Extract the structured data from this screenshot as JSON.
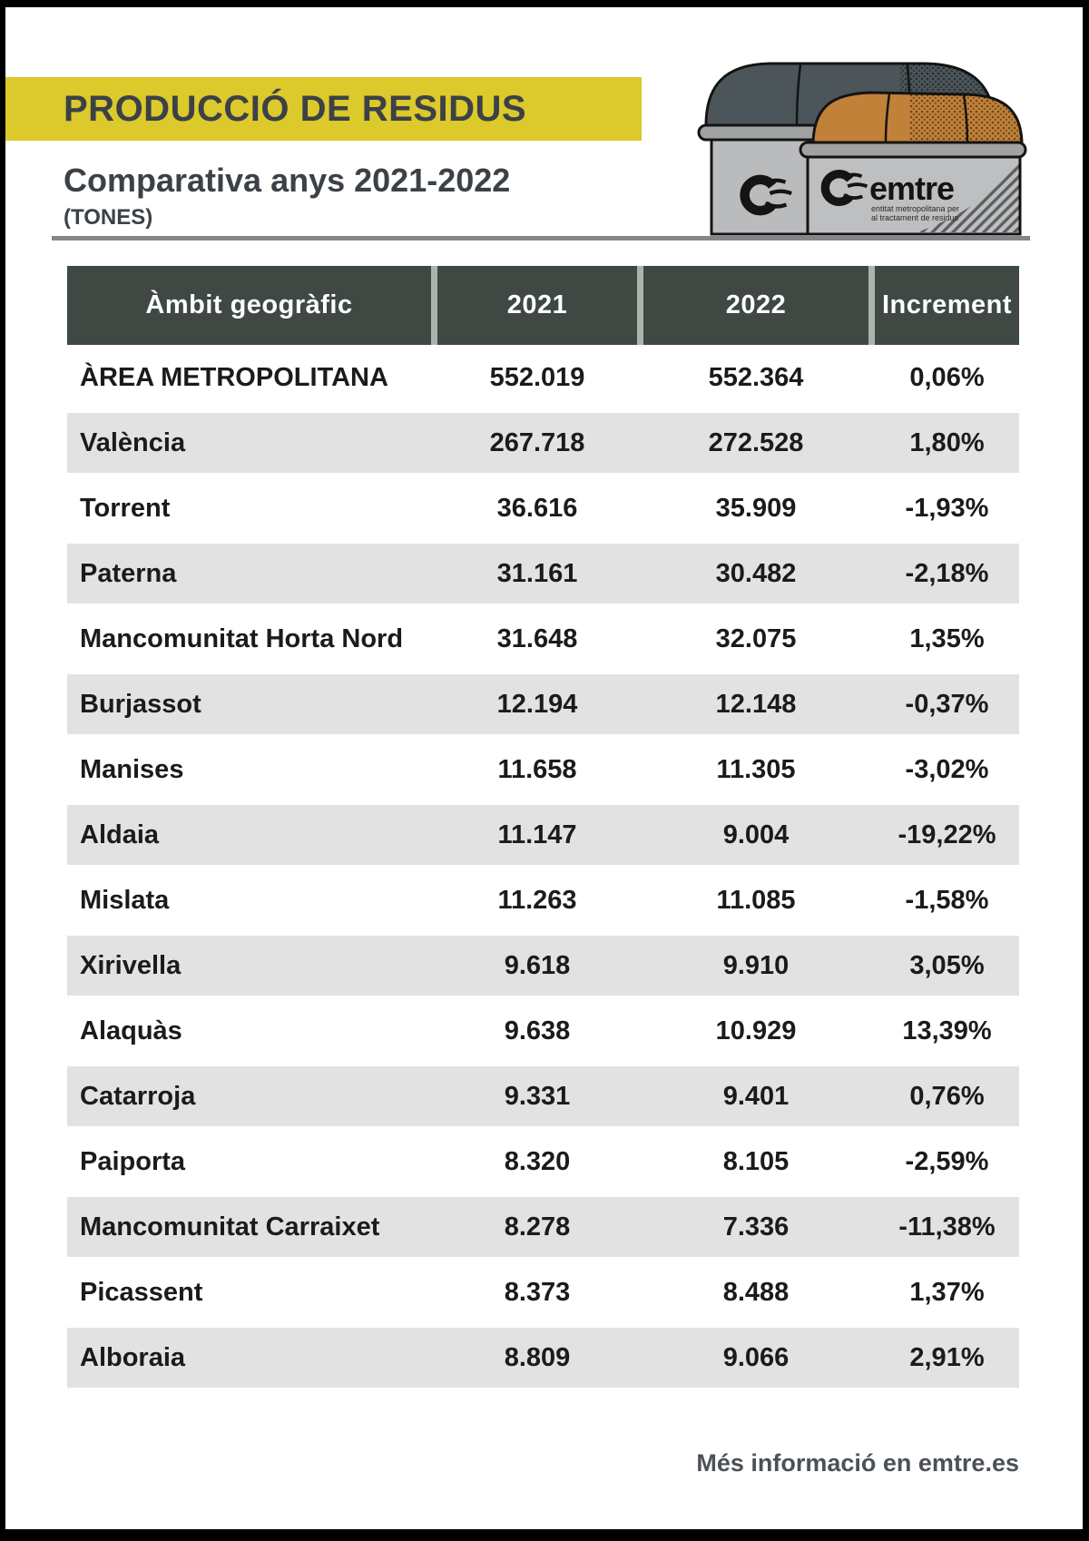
{
  "header": {
    "title": "PRODUCCIÓ DE RESIDUS",
    "subtitle": "Comparativa anys 2021-2022",
    "unit": "(TONES)"
  },
  "logo": {
    "brand": "emtre",
    "tagline_line1": "entitat metropolitana per",
    "tagline_line2": "al tractament de residus"
  },
  "table": {
    "columns": [
      "Àmbit geogràfic",
      "2021",
      "2022",
      "Increment"
    ],
    "rows": [
      {
        "area": "ÀREA METROPOLITANA",
        "y2021": "552.019",
        "y2022": "552.364",
        "increment": "0,06%"
      },
      {
        "area": "València",
        "y2021": "267.718",
        "y2022": "272.528",
        "increment": "1,80%"
      },
      {
        "area": "Torrent",
        "y2021": "36.616",
        "y2022": "35.909",
        "increment": "-1,93%"
      },
      {
        "area": "Paterna",
        "y2021": "31.161",
        "y2022": "30.482",
        "increment": "-2,18%"
      },
      {
        "area": "Mancomunitat Horta Nord",
        "y2021": "31.648",
        "y2022": "32.075",
        "increment": "1,35%"
      },
      {
        "area": "Burjassot",
        "y2021": "12.194",
        "y2022": "12.148",
        "increment": "-0,37%"
      },
      {
        "area": "Manises",
        "y2021": "11.658",
        "y2022": "11.305",
        "increment": "-3,02%"
      },
      {
        "area": "Aldaia",
        "y2021": "11.147",
        "y2022": "9.004",
        "increment": "-19,22%"
      },
      {
        "area": "Mislata",
        "y2021": "11.263",
        "y2022": "11.085",
        "increment": "-1,58%"
      },
      {
        "area": "Xirivella",
        "y2021": "9.618",
        "y2022": "9.910",
        "increment": "3,05%"
      },
      {
        "area": "Alaquàs",
        "y2021": "9.638",
        "y2022": "10.929",
        "increment": "13,39%"
      },
      {
        "area": "Catarroja",
        "y2021": "9.331",
        "y2022": "9.401",
        "increment": "0,76%"
      },
      {
        "area": "Paiporta",
        "y2021": "8.320",
        "y2022": "8.105",
        "increment": "-2,59%"
      },
      {
        "area": "Mancomunitat Carraixet",
        "y2021": "8.278",
        "y2022": "7.336",
        "increment": "-11,38%"
      },
      {
        "area": "Picassent",
        "y2021": "8.373",
        "y2022": "8.488",
        "increment": "1,37%"
      },
      {
        "area": "Alboraia",
        "y2021": "8.809",
        "y2022": "9.066",
        "increment": "2,91%"
      }
    ]
  },
  "footer": {
    "note": "Més informació en emtre.es"
  },
  "colors": {
    "accent_yellow": "#dcc92b",
    "header_bg": "#3f4843",
    "header_gap": "#abb3ac",
    "row_stripe": "#e2e2e2",
    "title_text": "#3b4147",
    "lid_dark": "#4c555a",
    "lid_orange": "#c28138",
    "bin_body": "#b9bbbd"
  }
}
